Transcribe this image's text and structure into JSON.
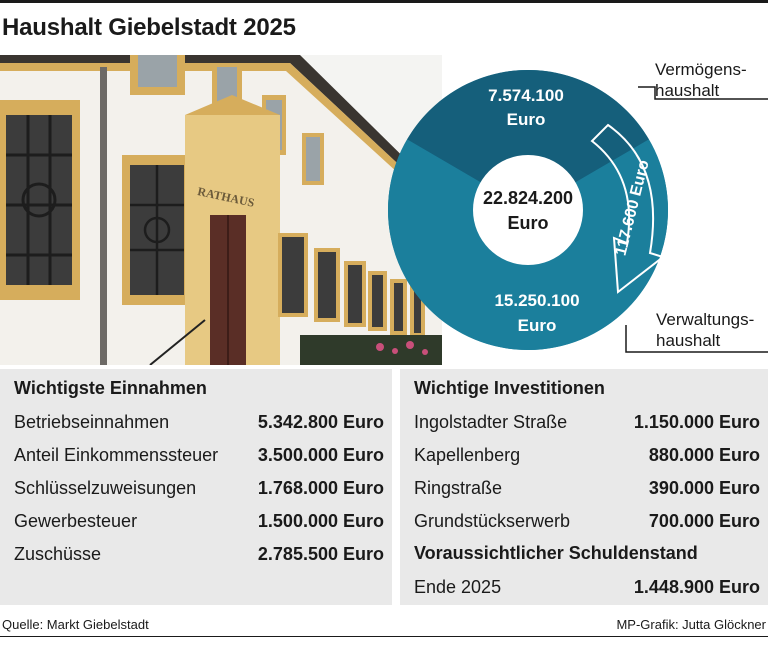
{
  "title": "Haushalt Giebelstadt 2025",
  "photo": {
    "sign_text": "RATHAUS",
    "colors": {
      "sky": "#f4f4f2",
      "wall": "#f3f1ec",
      "trim": "#d6ad5c",
      "door": "#5a2e26",
      "roof": "#3a3530",
      "grille": "#2a2a2a"
    }
  },
  "chart_data": {
    "type": "pie",
    "variant": "donut",
    "center_label": {
      "value": "22.824.200",
      "unit": "Euro"
    },
    "slices": [
      {
        "name": "Vermögenshaushalt",
        "label_lines": [
          "Vermögens-",
          "haushalt"
        ],
        "value": 7574100,
        "value_text": "7.574.100",
        "unit": "Euro",
        "color": "#155f7b"
      },
      {
        "name": "Verwaltungshaushalt",
        "label_lines": [
          "Verwaltungs-",
          "haushalt"
        ],
        "value": 15250100,
        "value_text": "15.250.100",
        "unit": "Euro",
        "color": "#1b7f9c"
      }
    ],
    "transfer_arrow": {
      "value_text": "117.600 Euro",
      "from": "Vermögenshaushalt",
      "to": "Verwaltungshaushalt"
    }
  },
  "einnahmen": {
    "heading": "Wichtigste Einnahmen",
    "rows": [
      {
        "label": "Betriebseinnahmen",
        "value": "5.342.800 Euro"
      },
      {
        "label": "Anteil Einkommenssteuer",
        "value": "3.500.000 Euro"
      },
      {
        "label": "Schlüsselzuweisungen",
        "value": "1.768.000 Euro"
      },
      {
        "label": "Gewerbesteuer",
        "value": "1.500.000 Euro"
      },
      {
        "label": "Zuschüsse",
        "value": "2.785.500 Euro"
      }
    ]
  },
  "investitionen": {
    "heading": "Wichtige Investitionen",
    "rows": [
      {
        "label": "Ingolstadter Straße",
        "value": "1.150.000 Euro"
      },
      {
        "label": "Kapellenberg",
        "value": "880.000 Euro"
      },
      {
        "label": "Ringstraße",
        "value": "390.000 Euro"
      },
      {
        "label": "Grundstückserwerb",
        "value": "700.000 Euro"
      }
    ]
  },
  "schuldenstand": {
    "heading": "Voraussichtlicher Schuldenstand",
    "rows": [
      {
        "label": "Ende 2025",
        "value": "1.448.900 Euro"
      }
    ]
  },
  "footer": {
    "source": "Quelle: Markt Giebelstadt",
    "credit": "MP-Grafik: Jutta Glöckner"
  }
}
